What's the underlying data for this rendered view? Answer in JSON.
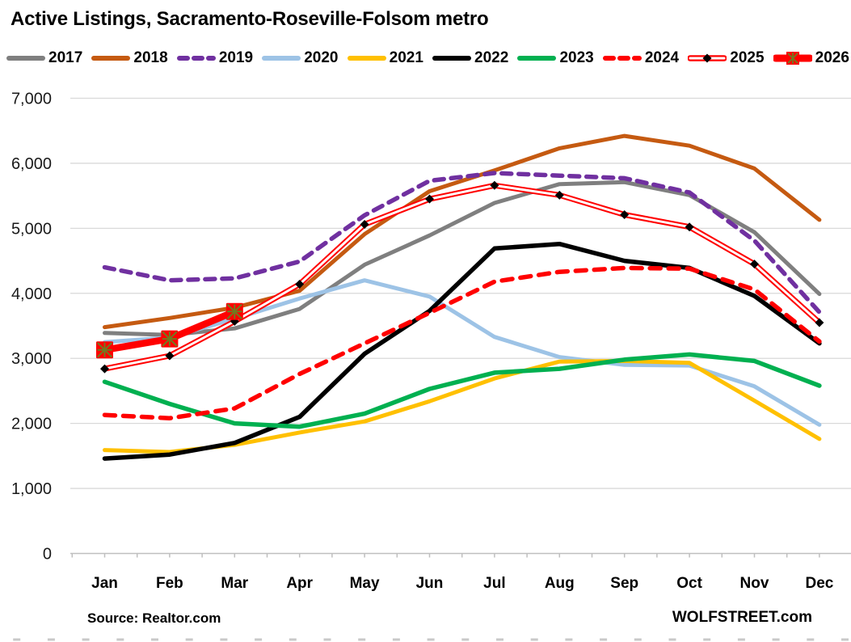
{
  "title": "Active Listings, Sacramento-Roseville-Folsom metro",
  "footer": {
    "source": "Source: Realtor.com",
    "brand": "WOLFSTREET.com"
  },
  "colors": {
    "gridline": "#D9D9D9",
    "axis": "#BFBFBF",
    "tick": "#BFBFBF",
    "bottom_dashes": "#C9C9C9",
    "text": "#000000",
    "marker_x_cross": "#6F7B20",
    "marker_diamond": "#000000"
  },
  "chart_data": {
    "type": "line",
    "title": "Active Listings, Sacramento-Roseville-Folsom metro",
    "xlabel": "",
    "ylabel": "",
    "grid": true,
    "legend_position": "top",
    "categories": [
      "Jan",
      "Feb",
      "Mar",
      "Apr",
      "May",
      "Jun",
      "Jul",
      "Aug",
      "Sep",
      "Oct",
      "Nov",
      "Dec"
    ],
    "y_axis": {
      "min": 0,
      "max": 7000,
      "tick_interval": 1000,
      "tick_labels": [
        "0",
        "1,000",
        "2,000",
        "3,000",
        "4,000",
        "5,000",
        "6,000",
        "7,000"
      ]
    },
    "series": [
      {
        "name": "2017",
        "color": "#7F7F7F",
        "style": "solid",
        "width": 5,
        "values": [
          3390,
          3360,
          3460,
          3760,
          4440,
          4890,
          5390,
          5680,
          5710,
          5510,
          4940,
          3990
        ]
      },
      {
        "name": "2018",
        "color": "#C55A11",
        "style": "solid",
        "width": 5,
        "values": [
          3480,
          3620,
          3780,
          4040,
          4910,
          5570,
          5890,
          6230,
          6420,
          6270,
          5920,
          5130
        ]
      },
      {
        "name": "2019",
        "color": "#7030A0",
        "style": "dashed",
        "width": 5.5,
        "dash": "12 9",
        "values": [
          4400,
          4200,
          4230,
          4490,
          5200,
          5730,
          5850,
          5810,
          5770,
          5550,
          4810,
          3710
        ]
      },
      {
        "name": "2020",
        "color": "#9DC3E6",
        "style": "solid",
        "width": 5,
        "values": [
          3250,
          3320,
          3610,
          3920,
          4200,
          3950,
          3330,
          3020,
          2900,
          2890,
          2570,
          1980
        ]
      },
      {
        "name": "2021",
        "color": "#FFC000",
        "style": "solid",
        "width": 5,
        "values": [
          1590,
          1560,
          1670,
          1860,
          2030,
          2340,
          2690,
          2950,
          2960,
          2930,
          2350,
          1760
        ]
      },
      {
        "name": "2022",
        "color": "#000000",
        "style": "solid",
        "width": 5.5,
        "values": [
          1460,
          1520,
          1700,
          2100,
          3070,
          3730,
          4690,
          4760,
          4500,
          4390,
          3960,
          3230
        ]
      },
      {
        "name": "2023",
        "color": "#00B050",
        "style": "solid",
        "width": 5.5,
        "values": [
          2640,
          2300,
          2000,
          1950,
          2150,
          2530,
          2780,
          2840,
          2980,
          3060,
          2960,
          2580
        ]
      },
      {
        "name": "2024",
        "color": "#FF0000",
        "style": "dashed",
        "width": 5.5,
        "dash": "13 10",
        "values": [
          2130,
          2080,
          2230,
          2760,
          3230,
          3700,
          4180,
          4330,
          4390,
          4380,
          4060,
          3260
        ]
      },
      {
        "name": "2025",
        "color": "#FF0000",
        "style": "double",
        "width": 7,
        "marker": "black-diamond",
        "values": [
          2840,
          3040,
          3570,
          4140,
          5060,
          5450,
          5660,
          5510,
          5210,
          5020,
          4450,
          3550
        ]
      },
      {
        "name": "2026",
        "color": "#FF0000",
        "style": "thick",
        "width": 8.5,
        "marker": "x-square",
        "values": [
          3130,
          3300,
          3720,
          null,
          null,
          null,
          null,
          null,
          null,
          null,
          null,
          null
        ]
      }
    ]
  }
}
